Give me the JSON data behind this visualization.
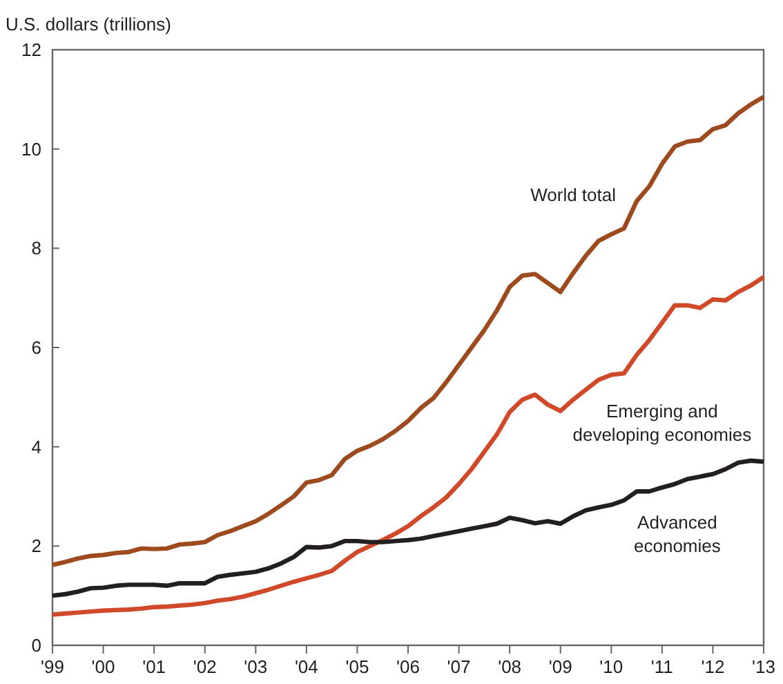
{
  "chart_data": {
    "type": "line",
    "ylabel": "U.S. dollars (trillions)",
    "x": [
      1999,
      1999.25,
      1999.5,
      1999.75,
      2000,
      2000.25,
      2000.5,
      2000.75,
      2001,
      2001.25,
      2001.5,
      2001.75,
      2002,
      2002.25,
      2002.5,
      2002.75,
      2003,
      2003.25,
      2003.5,
      2003.75,
      2004,
      2004.25,
      2004.5,
      2004.75,
      2005,
      2005.25,
      2005.5,
      2005.75,
      2006,
      2006.25,
      2006.5,
      2006.75,
      2007,
      2007.25,
      2007.5,
      2007.75,
      2008,
      2008.25,
      2008.5,
      2008.75,
      2009,
      2009.25,
      2009.5,
      2009.75,
      2010,
      2010.25,
      2010.5,
      2010.75,
      2011,
      2011.25,
      2011.5,
      2011.75,
      2012,
      2012.25,
      2012.5,
      2012.75,
      2013
    ],
    "series": [
      {
        "name": "World total",
        "color": "#9c4a1e",
        "values": [
          1.62,
          1.68,
          1.75,
          1.8,
          1.82,
          1.86,
          1.88,
          1.95,
          1.94,
          1.95,
          2.03,
          2.05,
          2.08,
          2.22,
          2.3,
          2.4,
          2.5,
          2.65,
          2.82,
          3.0,
          3.28,
          3.33,
          3.43,
          3.75,
          3.92,
          4.02,
          4.15,
          4.32,
          4.52,
          4.78,
          4.98,
          5.3,
          5.65,
          6.0,
          6.35,
          6.75,
          7.22,
          7.45,
          7.48,
          7.3,
          7.12,
          7.5,
          7.85,
          8.15,
          8.28,
          8.4,
          8.95,
          9.25,
          9.7,
          10.05,
          10.15,
          10.18,
          10.4,
          10.48,
          10.72,
          10.9,
          11.05
        ]
      },
      {
        "name": "Emerging and developing economies",
        "color": "#d04a2a",
        "values": [
          0.62,
          0.64,
          0.66,
          0.68,
          0.7,
          0.71,
          0.72,
          0.74,
          0.77,
          0.78,
          0.8,
          0.82,
          0.85,
          0.9,
          0.93,
          0.98,
          1.05,
          1.12,
          1.2,
          1.28,
          1.35,
          1.42,
          1.5,
          1.7,
          1.88,
          2.0,
          2.12,
          2.25,
          2.4,
          2.6,
          2.78,
          2.98,
          3.25,
          3.55,
          3.9,
          4.25,
          4.7,
          4.95,
          5.05,
          4.85,
          4.72,
          4.95,
          5.15,
          5.35,
          5.45,
          5.48,
          5.85,
          6.15,
          6.5,
          6.85,
          6.85,
          6.8,
          6.97,
          6.95,
          7.12,
          7.25,
          7.42
        ]
      },
      {
        "name": "Advanced economies",
        "color": "#231f20",
        "values": [
          1.0,
          1.03,
          1.08,
          1.15,
          1.16,
          1.2,
          1.22,
          1.22,
          1.22,
          1.2,
          1.25,
          1.25,
          1.25,
          1.38,
          1.42,
          1.45,
          1.48,
          1.55,
          1.65,
          1.78,
          1.98,
          1.97,
          2.0,
          2.1,
          2.1,
          2.08,
          2.08,
          2.1,
          2.12,
          2.15,
          2.2,
          2.25,
          2.3,
          2.35,
          2.4,
          2.45,
          2.57,
          2.52,
          2.46,
          2.5,
          2.45,
          2.6,
          2.72,
          2.78,
          2.83,
          2.92,
          3.1,
          3.1,
          3.18,
          3.25,
          3.35,
          3.4,
          3.45,
          3.55,
          3.68,
          3.72,
          3.7
        ]
      }
    ],
    "xlim": [
      1999,
      2013
    ],
    "xticks": [
      {
        "value": 1999,
        "label": "'99"
      },
      {
        "value": 2000,
        "label": "'00"
      },
      {
        "value": 2001,
        "label": "'01"
      },
      {
        "value": 2002,
        "label": "'02"
      },
      {
        "value": 2003,
        "label": "'03"
      },
      {
        "value": 2004,
        "label": "'04"
      },
      {
        "value": 2005,
        "label": "'05"
      },
      {
        "value": 2006,
        "label": "'06"
      },
      {
        "value": 2007,
        "label": "'07"
      },
      {
        "value": 2008,
        "label": "'08"
      },
      {
        "value": 2009,
        "label": "'09"
      },
      {
        "value": 2010,
        "label": "'10"
      },
      {
        "value": 2011,
        "label": "'11"
      },
      {
        "value": 2012,
        "label": "'12"
      },
      {
        "value": 2013,
        "label": "'13"
      }
    ],
    "ylim": [
      0,
      12
    ],
    "yticks": [
      0,
      2,
      4,
      6,
      8,
      10,
      12
    ],
    "grid": false,
    "legend": false,
    "marker": "none",
    "line_style": "solid"
  }
}
